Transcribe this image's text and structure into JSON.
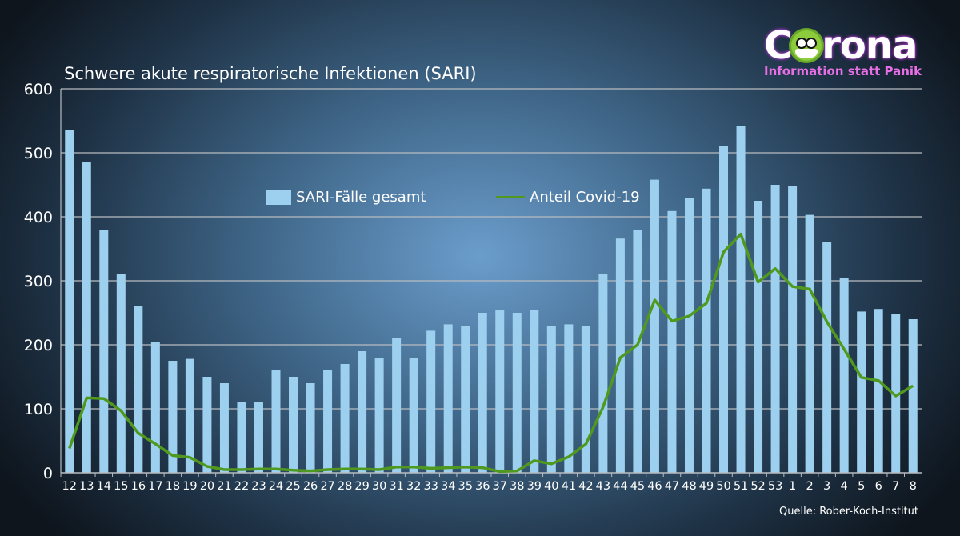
{
  "logo": {
    "word": "Corona",
    "tagline": "Information statt Panik"
  },
  "source": "Quelle:  Rober-Koch-Institut",
  "colors": {
    "bars": "#9dd0ef",
    "line": "#4f9a1e",
    "grid": "#b8bcc0"
  },
  "chart_data": {
    "type": "bar",
    "title": "Schwere akute respiratorische Infektionen (SARI)",
    "xlabel": "",
    "ylabel": "",
    "ylim": [
      0,
      600
    ],
    "yticks": [
      0,
      100,
      200,
      300,
      400,
      500,
      600
    ],
    "grid": true,
    "legend_placement": "top-center",
    "categories": [
      "12",
      "13",
      "14",
      "15",
      "16",
      "17",
      "18",
      "19",
      "20",
      "21",
      "22",
      "23",
      "24",
      "25",
      "26",
      "27",
      "28",
      "29",
      "30",
      "31",
      "32",
      "33",
      "34",
      "35",
      "36",
      "37",
      "38",
      "39",
      "40",
      "41",
      "42",
      "43",
      "44",
      "45",
      "46",
      "47",
      "48",
      "49",
      "50",
      "51",
      "52",
      "53",
      "1",
      "2",
      "3",
      "4",
      "5",
      "6",
      "7",
      "8"
    ],
    "series": [
      {
        "name": "SARI-Fälle gesamt",
        "type": "bar",
        "values": [
          535,
          485,
          380,
          310,
          260,
          205,
          175,
          178,
          150,
          140,
          110,
          110,
          160,
          150,
          140,
          160,
          170,
          190,
          180,
          210,
          180,
          222,
          232,
          230,
          250,
          255,
          250,
          255,
          230,
          232,
          230,
          310,
          366,
          380,
          458,
          409,
          430,
          444,
          510,
          542,
          425,
          450,
          448,
          403,
          361,
          304,
          252,
          256,
          248,
          240
        ]
      },
      {
        "name": "Anteil Covid-19",
        "type": "line",
        "values": [
          38,
          117,
          116,
          97,
          62,
          45,
          27,
          24,
          10,
          5,
          5,
          6,
          6,
          4,
          3,
          5,
          6,
          6,
          5,
          9,
          9,
          7,
          8,
          9,
          8,
          2,
          3,
          19,
          14,
          25,
          45,
          103,
          180,
          200,
          270,
          237,
          245,
          265,
          345,
          373,
          298,
          319,
          291,
          287,
          236,
          193,
          149,
          144,
          120,
          136
        ]
      }
    ]
  }
}
